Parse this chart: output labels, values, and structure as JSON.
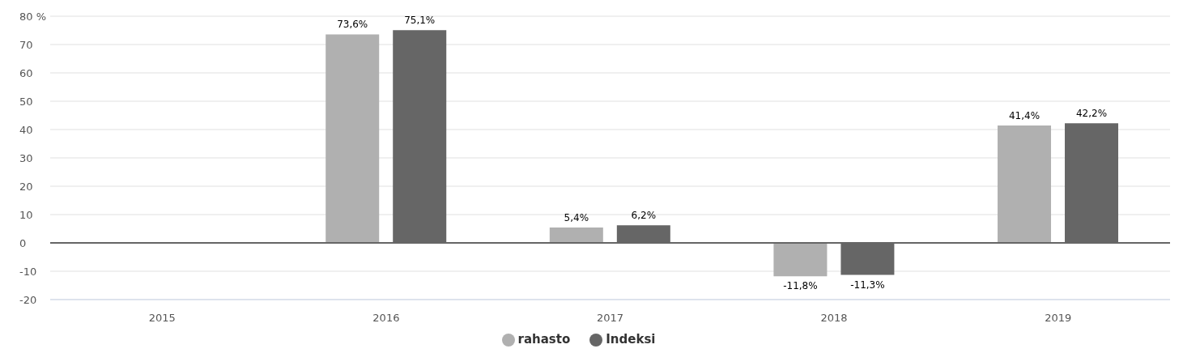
{
  "chart_data": {
    "type": "bar",
    "categories": [
      "2015",
      "2016",
      "2017",
      "2018",
      "2019"
    ],
    "series": [
      {
        "name": "rahasto",
        "color": "#b0b0b0",
        "values": [
          null,
          73.6,
          5.4,
          -11.8,
          41.4
        ],
        "value_labels": [
          null,
          "73,6%",
          "5,4%",
          "-11,8%",
          "41,4%"
        ]
      },
      {
        "name": "Indeksi",
        "color": "#666666",
        "values": [
          null,
          75.1,
          6.2,
          -11.3,
          42.2
        ],
        "value_labels": [
          null,
          "75,1%",
          "6,2%",
          "-11,3%",
          "42,2%"
        ]
      }
    ],
    "ylim": [
      -20,
      80
    ],
    "yticks": [
      -20,
      -10,
      0,
      10,
      20,
      30,
      40,
      50,
      60,
      70,
      {
        "value": 80,
        "label": "80 %"
      }
    ],
    "ref_lines": [
      {
        "axis": "y",
        "value": 0,
        "color": "#666666"
      }
    ],
    "grid": "y",
    "legend": "bottom"
  }
}
